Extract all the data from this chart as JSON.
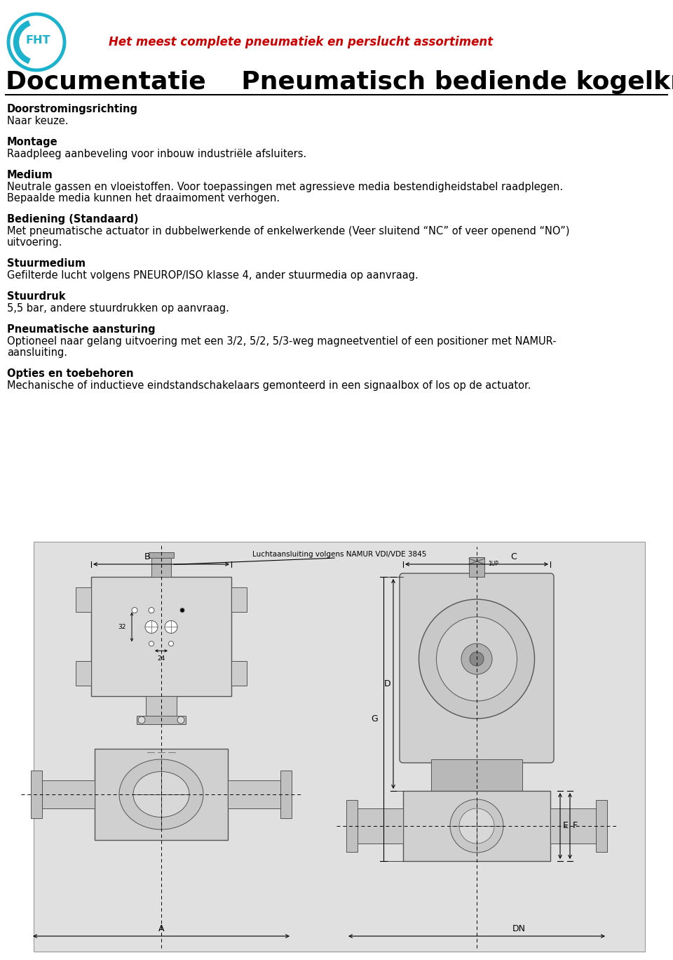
{
  "title_red": "Het meest complete pneumatiek en perslucht assortiment",
  "title_main": "Documentatie    Pneumatisch bediende kogelkranen",
  "sections": [
    {
      "header": "Doorstromingsrichting",
      "body": "Naar keuze."
    },
    {
      "header": "Montage",
      "body": "Raadpleeg aanbeveling voor inbouw industriële afsluiters."
    },
    {
      "header": "Medium",
      "body": "Neutrale gassen en vloeistoffen. Voor toepassingen met agressieve media bestendigheidstabel raadplegen.\nBepaalde media kunnen het draaimoment verhogen."
    },
    {
      "header": "Bediening (Standaard)",
      "body": "Met pneumatische actuator in dubbelwerkende of enkelwerkende (Veer sluitend “NC” of veer openend “NO”)\nuitvoering."
    },
    {
      "header": "Stuurmedium",
      "body": "Gefilterde lucht volgens PNEUROP/ISO klasse 4, ander stuurmedia op aanvraag."
    },
    {
      "header": "Stuurdruk",
      "body": "5,5 bar, andere stuurdrukken op aanvraag."
    },
    {
      "header": "Pneumatische aansturing",
      "body": "Optioneel naar gelang uitvoering met een 3/2, 5/2, 5/3-weg magneetventiel of een positioner met NAMUR-\naansluiting."
    },
    {
      "header": "Opties en toebehoren",
      "body": "Mechanische of inductieve eindstandschakelaars gemonteerd in een signaalbox of los op de actuator."
    }
  ],
  "bg_color": "#ffffff",
  "text_color": "#000000",
  "red_color": "#cc0000",
  "header_fontsize": 10.5,
  "body_fontsize": 10.5,
  "title_main_fontsize": 26,
  "title_red_fontsize": 12,
  "diagram_label": "Luchtaansluiting volgens NAMUR VDI/VDE 3845",
  "diagram_bg": "#e0e0e0",
  "line_color": "#333333"
}
